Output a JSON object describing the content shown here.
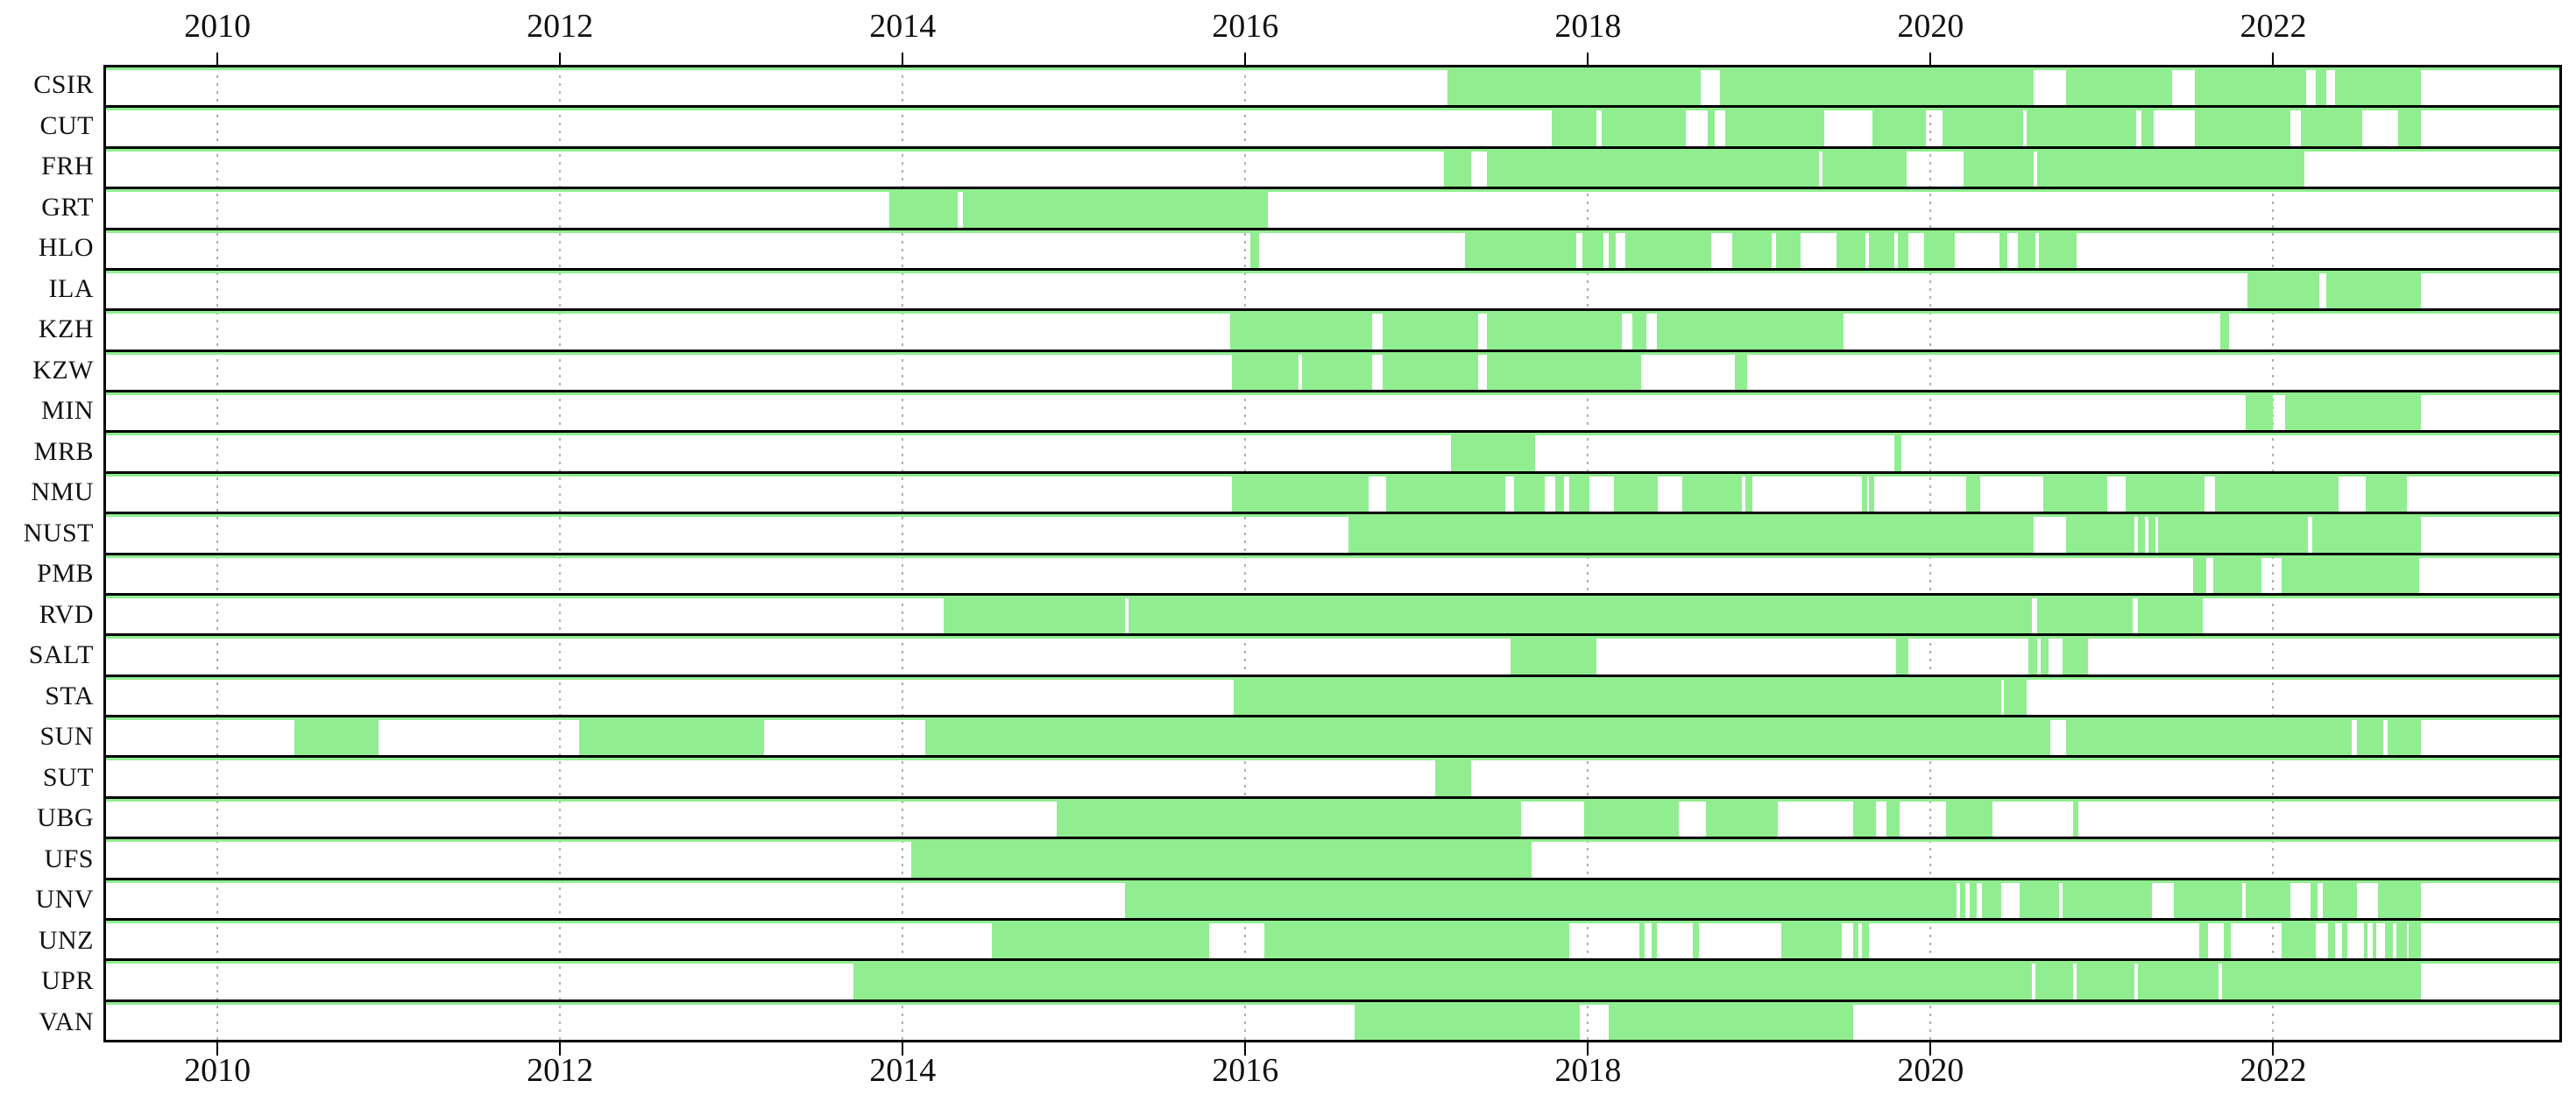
{
  "axis": {
    "x_min": 2009.35,
    "x_max": 2023.67,
    "tick_years": [
      "2010",
      "2012",
      "2014",
      "2016",
      "2018",
      "2020",
      "2022"
    ],
    "tick_values": [
      2010,
      2012,
      2014,
      2016,
      2018,
      2020,
      2022
    ],
    "gridline_style": "dotted",
    "gridline_color": "#b0b0b0",
    "frame_color": "#000000"
  },
  "chart_data": {
    "type": "gantt",
    "title": "",
    "xlabel": "",
    "ylabel": "",
    "bar_color": "#90ee90",
    "background_color": "#ffffff",
    "legend": "none",
    "x_range": [
      2009.35,
      2023.67
    ],
    "rows": [
      {
        "station": "CSIR",
        "segments": [
          [
            2017.18,
            2018.66
          ],
          [
            2018.77,
            2020.6
          ],
          [
            2020.79,
            2021.41
          ],
          [
            2021.54,
            2022.19
          ],
          [
            2022.25,
            2022.31
          ],
          [
            2022.36,
            2022.86
          ]
        ]
      },
      {
        "station": "CUT",
        "segments": [
          [
            2017.79,
            2018.05
          ],
          [
            2018.08,
            2018.57
          ],
          [
            2018.7,
            2018.74
          ],
          [
            2018.8,
            2019.38
          ],
          [
            2019.66,
            2019.97
          ],
          [
            2020.07,
            2020.54
          ],
          [
            2020.56,
            2021.2
          ],
          [
            2021.23,
            2021.3
          ],
          [
            2021.54,
            2022.1
          ],
          [
            2022.16,
            2022.52
          ],
          [
            2022.73,
            2022.86
          ]
        ]
      },
      {
        "station": "FRH",
        "segments": [
          [
            2017.16,
            2017.32
          ],
          [
            2017.41,
            2019.35
          ],
          [
            2019.37,
            2019.86
          ],
          [
            2020.19,
            2020.6
          ],
          [
            2020.62,
            2022.18
          ]
        ]
      },
      {
        "station": "GRT",
        "segments": [
          [
            2013.92,
            2014.32
          ],
          [
            2014.35,
            2016.13
          ]
        ]
      },
      {
        "station": "HLO",
        "segments": [
          [
            2016.03,
            2016.08
          ],
          [
            2017.28,
            2017.93
          ],
          [
            2017.97,
            2018.09
          ],
          [
            2018.12,
            2018.16
          ],
          [
            2018.22,
            2018.72
          ],
          [
            2018.84,
            2019.07
          ],
          [
            2019.1,
            2019.24
          ],
          [
            2019.45,
            2019.62
          ],
          [
            2019.64,
            2019.79
          ],
          [
            2019.81,
            2019.87
          ],
          [
            2019.96,
            2020.14
          ],
          [
            2020.4,
            2020.45
          ],
          [
            2020.51,
            2020.61
          ],
          [
            2020.63,
            2020.85
          ]
        ]
      },
      {
        "station": "ILA",
        "segments": [
          [
            2021.85,
            2022.27
          ],
          [
            2022.31,
            2022.86
          ]
        ]
      },
      {
        "station": "KZH",
        "segments": [
          [
            2015.91,
            2016.74
          ],
          [
            2016.8,
            2017.36
          ],
          [
            2017.41,
            2018.2
          ],
          [
            2018.26,
            2018.34
          ],
          [
            2018.4,
            2019.49
          ],
          [
            2021.69,
            2021.74
          ]
        ]
      },
      {
        "station": "KZW",
        "segments": [
          [
            2015.92,
            2016.31
          ],
          [
            2016.33,
            2016.74
          ],
          [
            2016.8,
            2017.36
          ],
          [
            2017.41,
            2018.31
          ],
          [
            2018.86,
            2018.93
          ]
        ]
      },
      {
        "station": "MIN",
        "segments": [
          [
            2021.84,
            2022.0
          ],
          [
            2022.07,
            2022.86
          ]
        ]
      },
      {
        "station": "MRB",
        "segments": [
          [
            2017.2,
            2017.69
          ],
          [
            2019.79,
            2019.83
          ]
        ]
      },
      {
        "station": "NMU",
        "segments": [
          [
            2015.92,
            2016.72
          ],
          [
            2016.82,
            2017.52
          ],
          [
            2017.57,
            2017.75
          ],
          [
            2017.81,
            2017.86
          ],
          [
            2017.89,
            2018.01
          ],
          [
            2018.15,
            2018.41
          ],
          [
            2018.55,
            2018.9
          ],
          [
            2018.92,
            2018.96
          ],
          [
            2019.6,
            2019.63
          ],
          [
            2019.64,
            2019.67
          ],
          [
            2020.21,
            2020.29
          ],
          [
            2020.66,
            2021.03
          ],
          [
            2021.14,
            2021.6
          ],
          [
            2021.66,
            2022.38
          ],
          [
            2022.54,
            2022.78
          ]
        ]
      },
      {
        "station": "NUST",
        "segments": [
          [
            2016.6,
            2020.6
          ],
          [
            2020.79,
            2021.19
          ],
          [
            2021.21,
            2021.25
          ],
          [
            2021.27,
            2021.31
          ],
          [
            2021.33,
            2022.2
          ],
          [
            2022.23,
            2022.86
          ]
        ]
      },
      {
        "station": "PMB",
        "segments": [
          [
            2021.53,
            2021.61
          ],
          [
            2021.65,
            2021.93
          ],
          [
            2022.05,
            2022.85
          ]
        ]
      },
      {
        "station": "RVD",
        "segments": [
          [
            2014.24,
            2015.3
          ],
          [
            2015.32,
            2020.59
          ],
          [
            2020.62,
            2021.18
          ],
          [
            2021.21,
            2021.59
          ]
        ]
      },
      {
        "station": "SALT",
        "segments": [
          [
            2017.55,
            2018.05
          ],
          [
            2019.8,
            2019.87
          ],
          [
            2020.57,
            2020.62
          ],
          [
            2020.64,
            2020.69
          ],
          [
            2020.77,
            2020.92
          ]
        ]
      },
      {
        "station": "STA",
        "segments": [
          [
            2015.93,
            2020.41
          ],
          [
            2020.43,
            2020.56
          ]
        ]
      },
      {
        "station": "SUN",
        "segments": [
          [
            2010.45,
            2010.94
          ],
          [
            2012.11,
            2013.19
          ],
          [
            2014.13,
            2020.7
          ],
          [
            2020.79,
            2022.46
          ],
          [
            2022.49,
            2022.64
          ],
          [
            2022.67,
            2022.86
          ]
        ]
      },
      {
        "station": "SUT",
        "segments": [
          [
            2017.11,
            2017.32
          ]
        ]
      },
      {
        "station": "UBG",
        "segments": [
          [
            2014.9,
            2017.61
          ],
          [
            2017.98,
            2018.53
          ],
          [
            2018.69,
            2019.11
          ],
          [
            2019.55,
            2019.68
          ],
          [
            2019.74,
            2019.82
          ],
          [
            2020.09,
            2020.36
          ],
          [
            2020.83,
            2020.86
          ]
        ]
      },
      {
        "station": "UFS",
        "segments": [
          [
            2014.05,
            2017.67
          ]
        ]
      },
      {
        "station": "UNV",
        "segments": [
          [
            2015.3,
            2020.15
          ],
          [
            2020.17,
            2020.2
          ],
          [
            2020.23,
            2020.27
          ],
          [
            2020.3,
            2020.41
          ],
          [
            2020.52,
            2020.75
          ],
          [
            2020.77,
            2021.29
          ],
          [
            2021.42,
            2021.82
          ],
          [
            2021.84,
            2022.1
          ],
          [
            2022.22,
            2022.26
          ],
          [
            2022.29,
            2022.49
          ],
          [
            2022.61,
            2022.86
          ]
        ]
      },
      {
        "station": "UNZ",
        "segments": [
          [
            2014.52,
            2015.79
          ],
          [
            2016.11,
            2017.89
          ],
          [
            2018.3,
            2018.33
          ],
          [
            2018.37,
            2018.4
          ],
          [
            2018.61,
            2018.65
          ],
          [
            2019.13,
            2019.48
          ],
          [
            2019.55,
            2019.58
          ],
          [
            2019.6,
            2019.64
          ],
          [
            2021.57,
            2021.62
          ],
          [
            2021.71,
            2021.75
          ],
          [
            2022.05,
            2022.25
          ],
          [
            2022.32,
            2022.36
          ],
          [
            2022.4,
            2022.43
          ],
          [
            2022.53,
            2022.55
          ],
          [
            2022.58,
            2022.6
          ],
          [
            2022.65,
            2022.7
          ],
          [
            2022.72,
            2022.78
          ],
          [
            2022.79,
            2022.86
          ]
        ]
      },
      {
        "station": "UPR",
        "segments": [
          [
            2013.71,
            2020.59
          ],
          [
            2020.61,
            2020.83
          ],
          [
            2020.85,
            2021.19
          ],
          [
            2021.21,
            2021.68
          ],
          [
            2021.7,
            2022.86
          ]
        ]
      },
      {
        "station": "VAN",
        "segments": [
          [
            2016.64,
            2017.95
          ],
          [
            2018.12,
            2019.55
          ]
        ]
      }
    ]
  }
}
